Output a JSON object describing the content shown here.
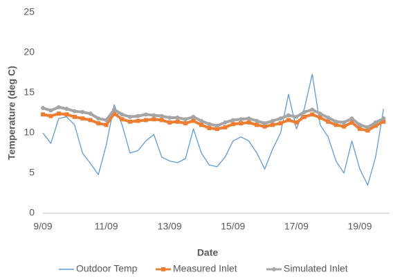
{
  "chart_data": {
    "type": "line",
    "x_label": "Date",
    "y_label": "Temperature (deg C)",
    "categories": [
      "9/09",
      null,
      null,
      null,
      null,
      null,
      null,
      null,
      "11/09",
      null,
      null,
      null,
      null,
      null,
      null,
      null,
      "13/09",
      null,
      null,
      null,
      null,
      null,
      null,
      null,
      "15/09",
      null,
      null,
      null,
      null,
      null,
      null,
      null,
      "17/09",
      null,
      null,
      null,
      null,
      null,
      null,
      null,
      "19/09",
      null,
      null,
      null
    ],
    "series": [
      {
        "name": "Outdoor Temp",
        "color": "#5b9bd5",
        "values": [
          10,
          8.7,
          11.8,
          12,
          11,
          7.5,
          6.2,
          4.8,
          8.5,
          13.5,
          11,
          7.5,
          7.8,
          9,
          9.8,
          7,
          6.5,
          6.3,
          6.8,
          10.5,
          7.5,
          6,
          5.8,
          7,
          9,
          9.5,
          9,
          7.5,
          5.5,
          8,
          10,
          14.8,
          10.5,
          13,
          17.3,
          11,
          9.5,
          6.5,
          5,
          9,
          5.5,
          3.5,
          7,
          13
        ]
      },
      {
        "name": "Measured Inlet",
        "color": "#ed7d31",
        "values": [
          12.3,
          12.1,
          12.4,
          12.3,
          12.0,
          11.8,
          11.6,
          11.2,
          11.0,
          12.4,
          11.7,
          11.4,
          11.5,
          11.6,
          11.7,
          11.6,
          11.3,
          11.4,
          11.2,
          11.5,
          11.0,
          10.6,
          10.5,
          10.7,
          11.1,
          11.2,
          11.3,
          11.0,
          10.8,
          11.0,
          11.2,
          11.6,
          11.3,
          12.0,
          12.3,
          11.9,
          11.4,
          11.0,
          10.8,
          11.3,
          10.5,
          10.3,
          10.9,
          11.4
        ]
      },
      {
        "name": "Simulated Inlet",
        "color": "#a5a5a5",
        "values": [
          13.1,
          12.8,
          13.2,
          13.0,
          12.7,
          12.6,
          12.4,
          11.8,
          11.6,
          12.9,
          12.3,
          12.0,
          12.1,
          12.3,
          12.2,
          12.1,
          11.9,
          11.9,
          11.7,
          12.0,
          11.5,
          11.1,
          10.9,
          11.3,
          11.6,
          11.7,
          11.8,
          11.5,
          11.2,
          11.5,
          11.8,
          12.2,
          12.0,
          12.6,
          12.9,
          12.4,
          11.9,
          11.4,
          11.3,
          11.8,
          11.0,
          10.7,
          11.3,
          11.8
        ]
      }
    ],
    "ylim": [
      0,
      25
    ],
    "yticks": [
      0,
      5,
      10,
      15,
      20,
      25
    ],
    "grid": false,
    "legend": "bottom"
  }
}
